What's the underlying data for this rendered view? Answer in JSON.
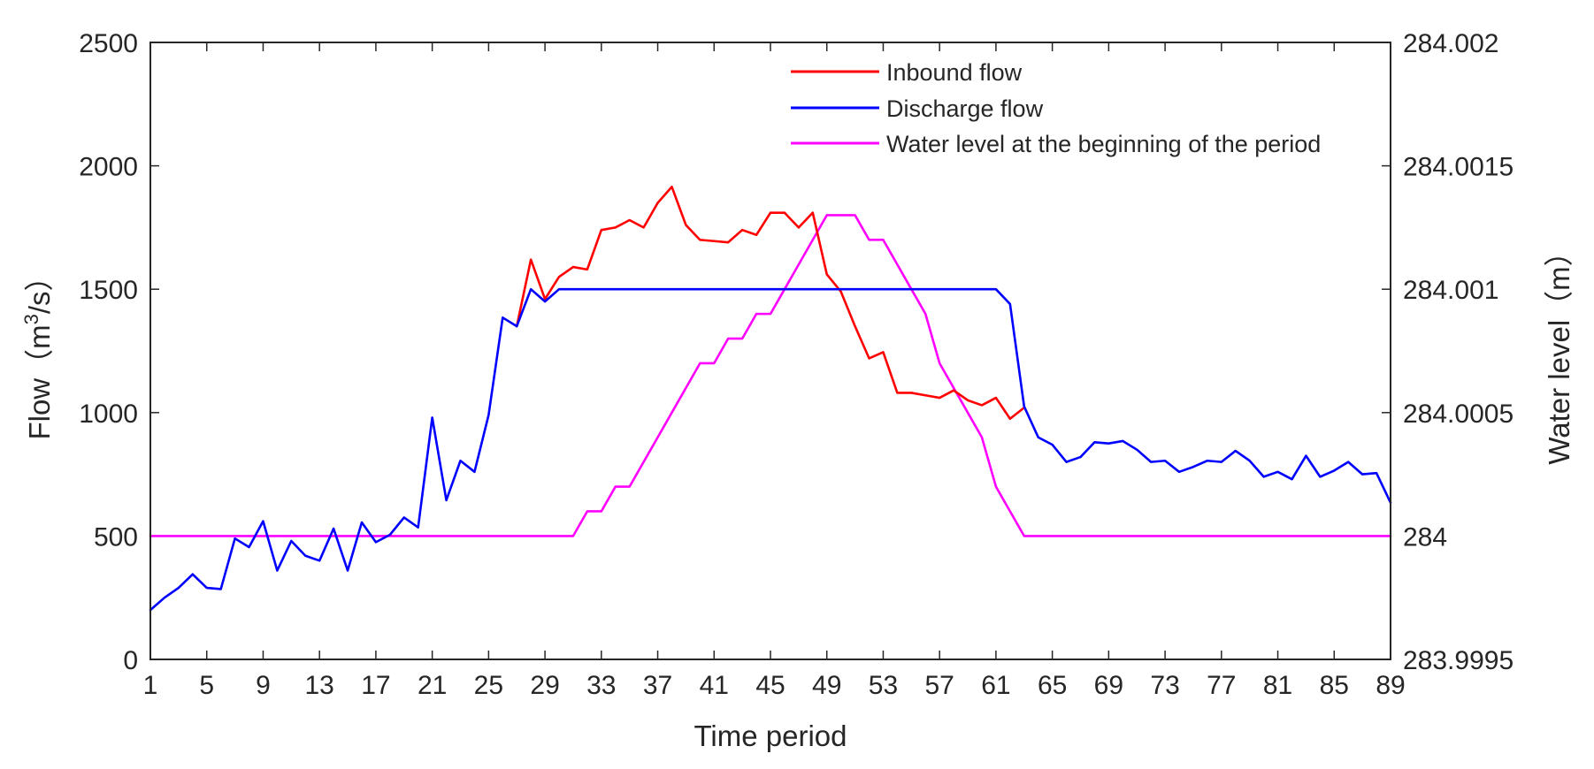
{
  "chart_data": {
    "type": "line",
    "title": "",
    "xlabel": "Time period",
    "ylabel_left": {
      "prefix": "Flow（m",
      "sup": "3",
      "suffix": "/s）"
    },
    "ylabel_right": "Water level（m）",
    "xlim": [
      1,
      89
    ],
    "ylim_left": [
      0,
      2500
    ],
    "ylim_right": [
      283.9995,
      284.002
    ],
    "x_ticks": [
      1,
      5,
      9,
      13,
      17,
      21,
      25,
      29,
      33,
      37,
      41,
      45,
      49,
      53,
      57,
      61,
      65,
      69,
      73,
      77,
      81,
      85,
      89
    ],
    "x_tick_labels": [
      "1",
      "5",
      "9",
      "13",
      "17",
      "21",
      "25",
      "29",
      "33",
      "37",
      "41",
      "45",
      "49",
      "53",
      "57",
      "61",
      "65",
      "69",
      "73",
      "77",
      "81",
      "85",
      "89"
    ],
    "y_left_ticks": [
      0,
      500,
      1000,
      1500,
      2000,
      2500
    ],
    "y_left_tick_labels": [
      "0",
      "500",
      "1000",
      "1500",
      "2000",
      "2500"
    ],
    "y_right_ticks": [
      283.9995,
      284.0,
      284.0005,
      284.001,
      284.0015,
      284.002
    ],
    "y_right_tick_labels": [
      "283.9995",
      "284",
      "284.0005",
      "284.001",
      "284.0015",
      "284.002"
    ],
    "grid": false,
    "legend_position": "top-right",
    "series": [
      {
        "name": "Inbound flow",
        "axis": "left",
        "color": "#ff0000",
        "x_start": 27,
        "values": [
          1350,
          1620,
          1460,
          1550,
          1590,
          1580,
          1740,
          1750,
          1780,
          1750,
          1850,
          1915,
          1760,
          1700,
          1695,
          1690,
          1740,
          1720,
          1810,
          1810,
          1750,
          1810,
          1560,
          1490,
          1350,
          1220,
          1245,
          1080,
          1080,
          1070,
          1060,
          1090,
          1050,
          1030,
          1060,
          975,
          1020
        ]
      },
      {
        "name": "Discharge flow",
        "axis": "left",
        "color": "#0000ff",
        "x_start": 1,
        "values": [
          200,
          250,
          290,
          345,
          290,
          285,
          490,
          455,
          560,
          360,
          480,
          420,
          400,
          530,
          360,
          555,
          475,
          505,
          575,
          535,
          980,
          645,
          805,
          760,
          990,
          1385,
          1350,
          1500,
          1450,
          1500,
          1500,
          1500,
          1500,
          1500,
          1500,
          1500,
          1500,
          1500,
          1500,
          1500,
          1500,
          1500,
          1500,
          1500,
          1500,
          1500,
          1500,
          1500,
          1500,
          1500,
          1500,
          1500,
          1500,
          1500,
          1500,
          1500,
          1500,
          1500,
          1500,
          1500,
          1500,
          1440,
          1025,
          900,
          870,
          800,
          820,
          880,
          875,
          885,
          850,
          800,
          805,
          760,
          780,
          805,
          800,
          845,
          805,
          740,
          760,
          730,
          825,
          740,
          765,
          800,
          750,
          755,
          635
        ]
      },
      {
        "name": "Water level at the beginning of the period",
        "axis": "right",
        "color": "#ff00ff",
        "x_start": 1,
        "values": [
          284.0,
          284.0,
          284.0,
          284.0,
          284.0,
          284.0,
          284.0,
          284.0,
          284.0,
          284.0,
          284.0,
          284.0,
          284.0,
          284.0,
          284.0,
          284.0,
          284.0,
          284.0,
          284.0,
          284.0,
          284.0,
          284.0,
          284.0,
          284.0,
          284.0,
          284.0,
          284.0,
          284.0,
          284.0,
          284.0,
          284.0,
          284.0001,
          284.0001,
          284.0002,
          284.0002,
          284.0003,
          284.0004,
          284.0005,
          284.0006,
          284.0007,
          284.0007,
          284.0008,
          284.0008,
          284.0009,
          284.0009,
          284.001,
          284.0011,
          284.0012,
          284.0013,
          284.0013,
          284.0013,
          284.0012,
          284.0012,
          284.0011,
          284.001,
          284.0009,
          284.0007,
          284.0006,
          284.0005,
          284.0004,
          284.0002,
          284.0001,
          284.0,
          284.0,
          284.0,
          284.0,
          284.0,
          284.0,
          284.0,
          284.0,
          284.0,
          284.0,
          284.0,
          284.0,
          284.0,
          284.0,
          284.0,
          284.0,
          284.0,
          284.0,
          284.0,
          284.0,
          284.0,
          284.0,
          284.0,
          284.0,
          284.0,
          284.0,
          284.0
        ]
      }
    ]
  }
}
